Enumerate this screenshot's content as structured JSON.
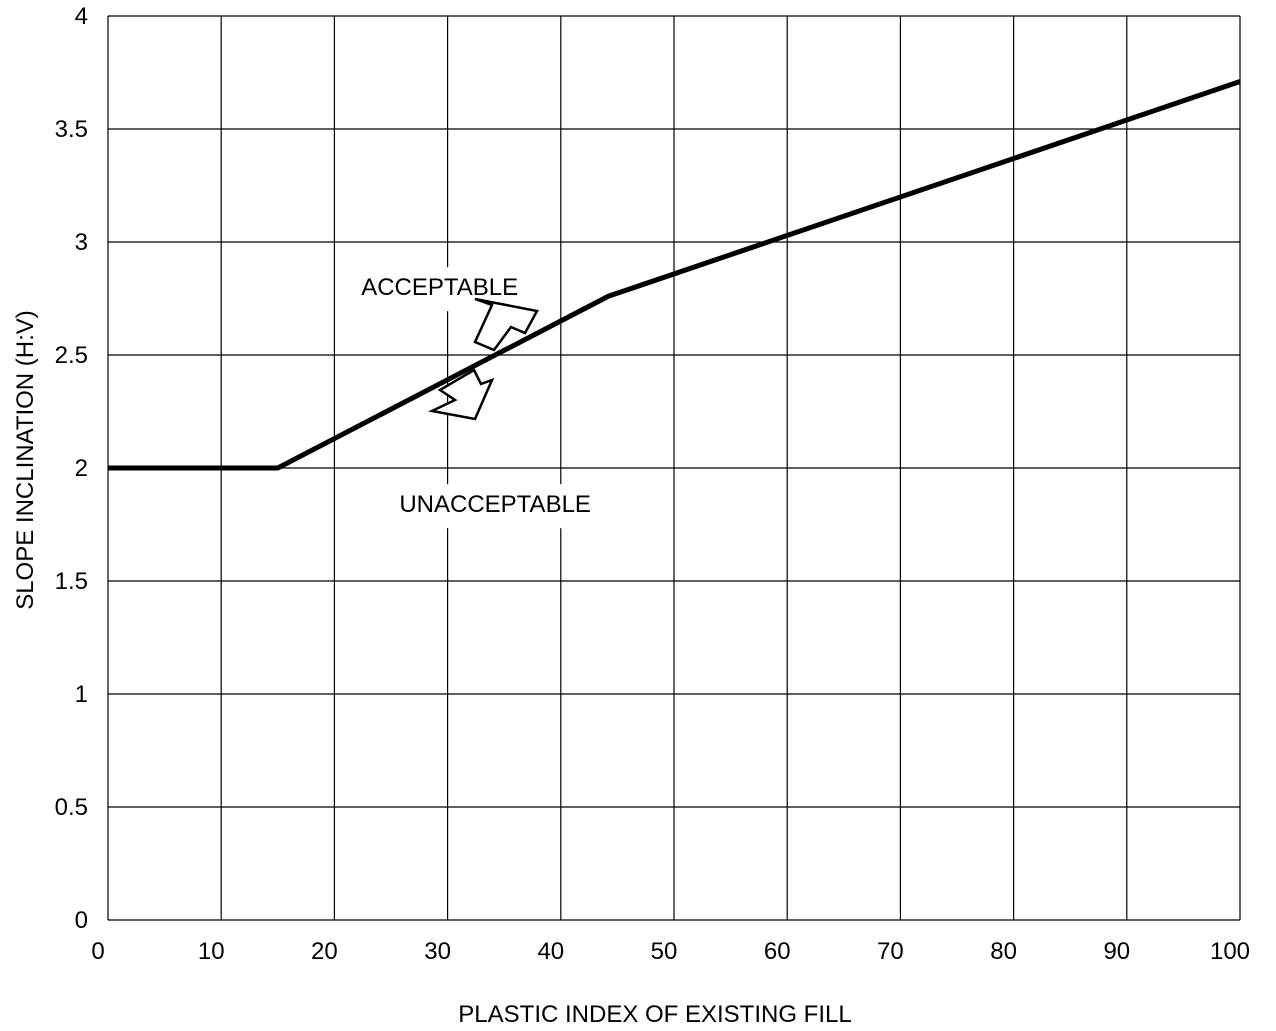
{
  "chart_data": {
    "type": "line",
    "xlabel": "PLASTIC INDEX OF EXISTING FILL",
    "ylabel": "SLOPE INCLINATION (H:V)",
    "xlim": [
      0,
      100
    ],
    "ylim": [
      0,
      4
    ],
    "xticks": [
      0,
      10,
      20,
      30,
      40,
      50,
      60,
      70,
      80,
      90,
      100
    ],
    "yticks": [
      0,
      0.5,
      1,
      1.5,
      2,
      2.5,
      3,
      3.5,
      4
    ],
    "xtick_labels": [
      "0",
      "10",
      "20",
      "30",
      "40",
      "50",
      "60",
      "70",
      "80",
      "90",
      "100"
    ],
    "ytick_labels": [
      "0",
      "0.5",
      "1",
      "1.5",
      "2",
      "2.5",
      "3",
      "3.5",
      "4"
    ],
    "grid": true,
    "series": [
      {
        "x": [
          0,
          15,
          44.2,
          100
        ],
        "y": [
          2,
          2,
          2.76,
          3.71
        ]
      }
    ],
    "annotations": [
      {
        "text": "ACCEPTABLE",
        "x": 29.3,
        "y": 2.8
      },
      {
        "text": "UNACCEPTABLE",
        "x": 34.2,
        "y": 1.84
      }
    ]
  }
}
